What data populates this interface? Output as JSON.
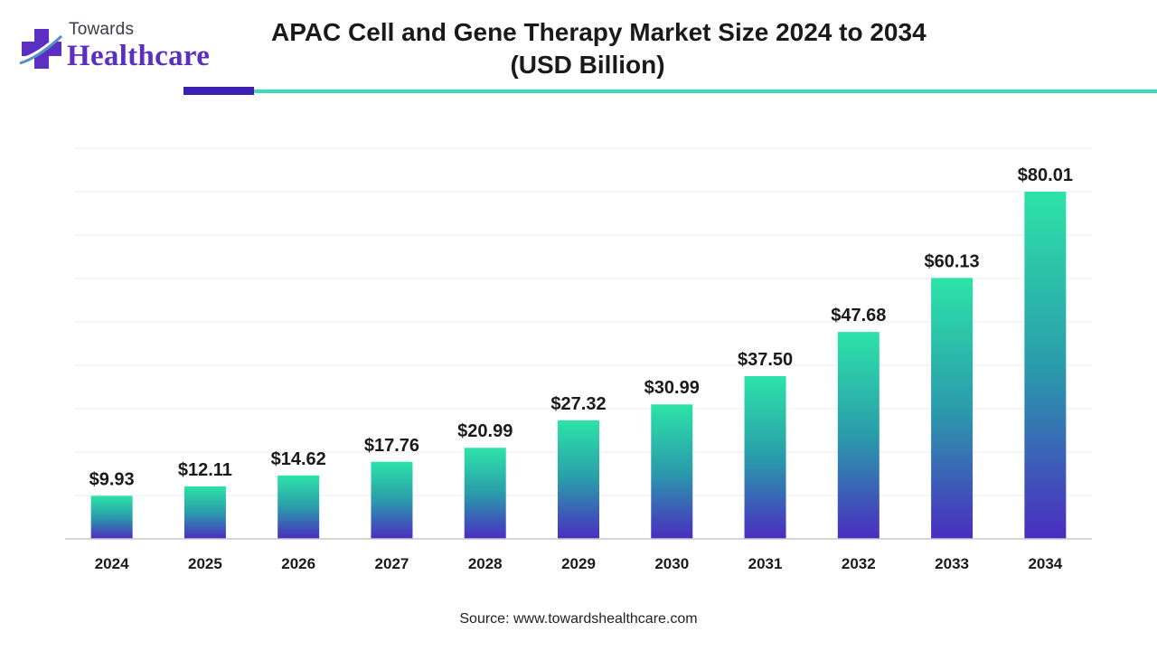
{
  "logo": {
    "word_small": "Towards",
    "word_big": "Healthcare"
  },
  "title": {
    "line1": "APAC Cell and Gene Therapy Market Size 2024 to 2034",
    "line2": "(USD Billion)"
  },
  "source": "Source: www.towardshealthcare.com",
  "colors": {
    "bar_top": "#2de3a8",
    "bar_mid": "#2a9cab",
    "bar_bottom": "#4a2dc0",
    "rule_dark": "#3b1fb0",
    "rule_teal": "#3fd8b8",
    "brand_purple": "#5b2fc2"
  },
  "chart_data": {
    "type": "bar",
    "title": "APAC Cell and Gene Therapy Market Size 2024 to 2034 (USD Billion)",
    "categories": [
      "2024",
      "2025",
      "2026",
      "2027",
      "2028",
      "2029",
      "2030",
      "2031",
      "2032",
      "2033",
      "2034"
    ],
    "values": [
      9.93,
      12.11,
      14.62,
      17.76,
      20.99,
      27.32,
      30.99,
      37.5,
      47.68,
      60.13,
      80.01
    ],
    "data_labels": [
      "$9.93",
      "$12.11",
      "$14.62",
      "$17.76",
      "$20.99",
      "$27.32",
      "$30.99",
      "$37.50",
      "$47.68",
      "$60.13",
      "$80.01"
    ],
    "xlabel": "",
    "ylabel": "",
    "ylim": [
      0,
      90
    ],
    "grid": true,
    "legend": "none"
  }
}
